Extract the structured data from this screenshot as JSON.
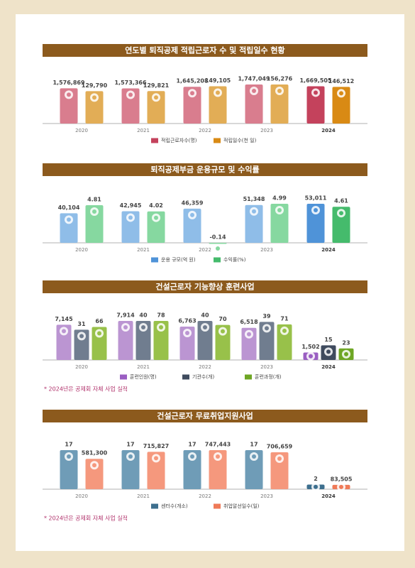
{
  "chart_data": [
    {
      "type": "bar",
      "title": "연도별 퇴직공제 적립근로자 수 및 적립일수 현황",
      "categories": [
        "2020",
        "2021",
        "2022",
        "2023",
        "2024"
      ],
      "series": [
        {
          "name": "적립근로자수(명)",
          "color": "#d97d8e",
          "highlight_color": "#c4425c",
          "values": [
            1576869,
            1573366,
            1645208,
            1747049,
            1669505
          ],
          "value_labels": [
            "1,576,869",
            "1,573,366",
            "1,645,208",
            "1,747,049",
            "1,669,505"
          ]
        },
        {
          "name": "적립일수(천 일)",
          "color": "#e2ad56",
          "highlight_color": "#d98a14",
          "values": [
            129790,
            129821,
            149105,
            156276,
            146512
          ],
          "value_labels": [
            "129,790",
            "129,821",
            "149,105",
            "156,276",
            "146,512"
          ]
        }
      ]
    },
    {
      "type": "bar",
      "title": "퇴직공제부금 운용규모 및 수익률",
      "categories": [
        "2020",
        "2021",
        "2022",
        "2023",
        "2024"
      ],
      "series": [
        {
          "name": "운용 규모(억 원)",
          "color": "#8fbde8",
          "highlight_color": "#4f93d8",
          "values": [
            40104,
            42945,
            46359,
            51348,
            53011
          ],
          "value_labels": [
            "40,104",
            "42,945",
            "46,359",
            "51,348",
            "53,011"
          ]
        },
        {
          "name": "수익률(%)",
          "color": "#86d8a0",
          "highlight_color": "#45bb6c",
          "values": [
            4.81,
            4.02,
            -0.14,
            4.99,
            4.61
          ]
        }
      ]
    },
    {
      "type": "bar",
      "title": "건설근로자 기능향상 훈련사업",
      "categories": [
        "2020",
        "2021",
        "2022",
        "2023",
        "2024"
      ],
      "series": [
        {
          "name": "훈련인원(명)",
          "color": "#bb95d2",
          "highlight_color": "#9a5ec2",
          "values": [
            7145,
            7914,
            6763,
            6518,
            1502
          ],
          "value_labels": [
            "7,145",
            "7,914",
            "6,763",
            "6,518",
            "1,502"
          ]
        },
        {
          "name": "기관수(개)",
          "color": "#707d8f",
          "highlight_color": "#3f4b5e",
          "values": [
            31,
            40,
            40,
            39,
            15
          ]
        },
        {
          "name": "훈련과정(개)",
          "color": "#98c14a",
          "highlight_color": "#6ea624",
          "values": [
            66,
            78,
            70,
            71,
            23
          ]
        }
      ],
      "footnote": "* 2024년은 공제회 자체 사업 실적"
    },
    {
      "type": "bar",
      "title": "건설근로자 무료취업지원사업",
      "categories": [
        "2020",
        "2021",
        "2022",
        "2023",
        "2024"
      ],
      "series": [
        {
          "name": "센터수(개소)",
          "color": "#6f9cb7",
          "highlight_color": "#3d6f8e",
          "values": [
            17,
            17,
            17,
            17,
            2
          ]
        },
        {
          "name": "취업알선일수(일)",
          "color": "#f5987d",
          "highlight_color": "#ef7a58",
          "values": [
            581300,
            715827,
            747443,
            706659,
            83505
          ],
          "value_labels": [
            "581,300",
            "715,827",
            "747,443",
            "706,659",
            "83,505"
          ]
        }
      ],
      "footnote": "* 2024년은 공제회 자체 사업 실적"
    }
  ]
}
